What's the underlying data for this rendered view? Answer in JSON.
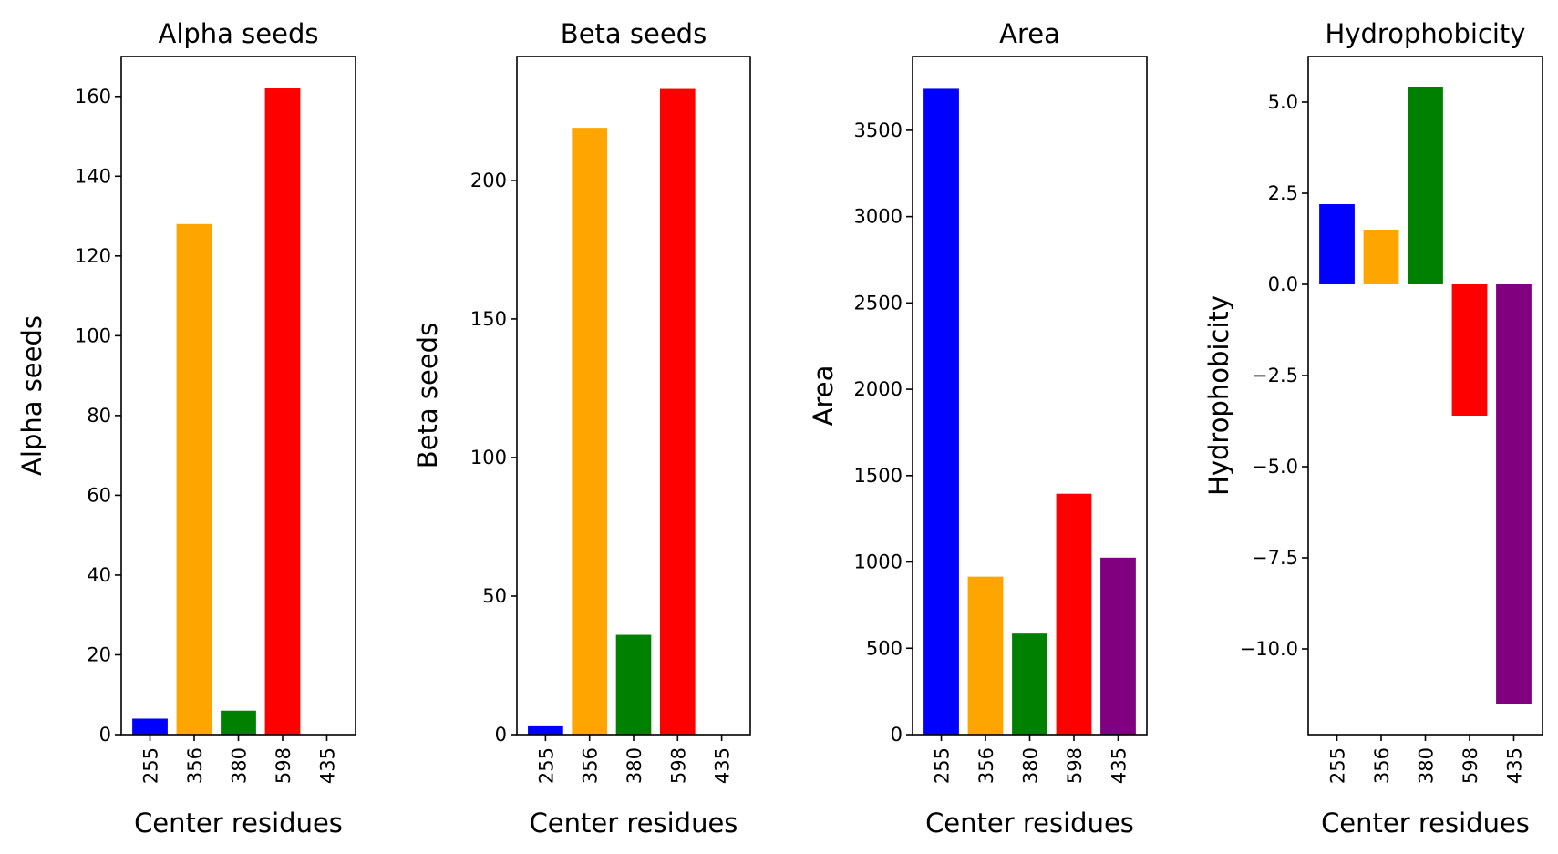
{
  "chart_data": [
    {
      "type": "bar",
      "title": "Alpha seeds",
      "xlabel": "Center residues",
      "ylabel": "Alpha seeds",
      "categories": [
        "255",
        "356",
        "380",
        "598",
        "435"
      ],
      "values": [
        4,
        128,
        6,
        162,
        0
      ],
      "colors": [
        "#0000ff",
        "#ffa500",
        "#008000",
        "#ff0000",
        "#800080"
      ],
      "ylim": [
        0,
        170
      ],
      "yticks": [
        0,
        20,
        40,
        60,
        80,
        100,
        120,
        140,
        160
      ],
      "ytick_labels": [
        "0",
        "20",
        "40",
        "60",
        "80",
        "100",
        "120",
        "140",
        "160"
      ],
      "grid": false
    },
    {
      "type": "bar",
      "title": "Beta seeds",
      "xlabel": "Center residues",
      "ylabel": "Beta seeds",
      "categories": [
        "255",
        "356",
        "380",
        "598",
        "435"
      ],
      "values": [
        3,
        219,
        36,
        233,
        0
      ],
      "colors": [
        "#0000ff",
        "#ffa500",
        "#008000",
        "#ff0000",
        "#800080"
      ],
      "ylim": [
        0,
        244.7
      ],
      "yticks": [
        0,
        50,
        100,
        150,
        200
      ],
      "ytick_labels": [
        "0",
        "50",
        "100",
        "150",
        "200"
      ],
      "grid": false
    },
    {
      "type": "bar",
      "title": "Area",
      "xlabel": "Center residues",
      "ylabel": "Area",
      "categories": [
        "255",
        "356",
        "380",
        "598",
        "435"
      ],
      "values": [
        3740,
        915,
        585,
        1395,
        1025
      ],
      "colors": [
        "#0000ff",
        "#ffa500",
        "#008000",
        "#ff0000",
        "#800080"
      ],
      "ylim": [
        0,
        3927
      ],
      "yticks": [
        0,
        500,
        1000,
        1500,
        2000,
        2500,
        3000,
        3500
      ],
      "ytick_labels": [
        "0",
        "500",
        "1000",
        "1500",
        "2000",
        "2500",
        "3000",
        "3500"
      ],
      "grid": false
    },
    {
      "type": "bar",
      "title": "Hydrophobicity",
      "xlabel": "Center residues",
      "ylabel": "Hydrophobicity",
      "categories": [
        "255",
        "356",
        "380",
        "598",
        "435"
      ],
      "values": [
        2.2,
        1.5,
        5.4,
        -3.6,
        -11.5
      ],
      "colors": [
        "#0000ff",
        "#ffa500",
        "#008000",
        "#ff0000",
        "#800080"
      ],
      "ylim": [
        -12.35,
        6.25
      ],
      "yticks": [
        -10.0,
        -7.5,
        -5.0,
        -2.5,
        0.0,
        2.5,
        5.0
      ],
      "ytick_labels": [
        "−10.0",
        "−7.5",
        "−5.0",
        "−2.5",
        "0.0",
        "2.5",
        "5.0"
      ],
      "grid": false
    }
  ]
}
